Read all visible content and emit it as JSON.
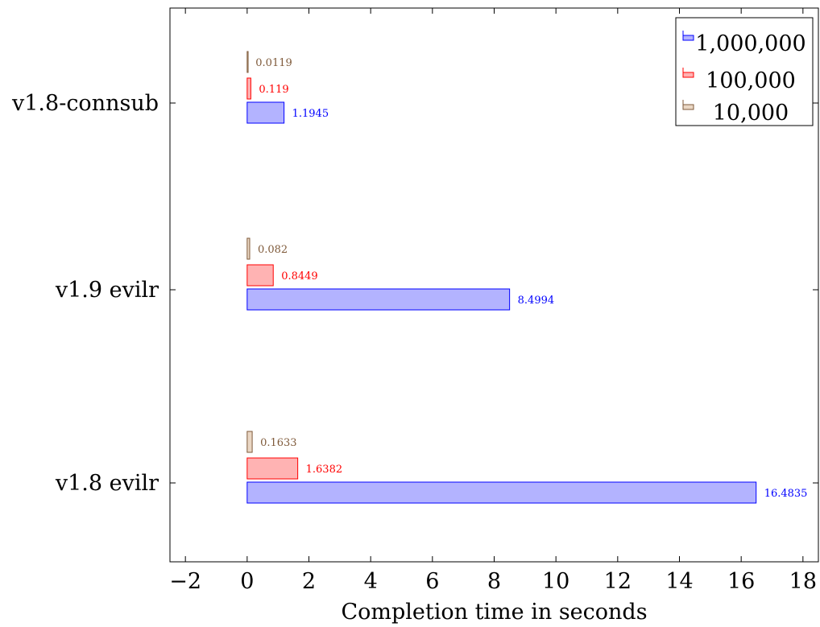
{
  "chart_data": {
    "type": "bar",
    "orientation": "horizontal",
    "categories": [
      "v1.8-connsub",
      "v1.9 evilr",
      "v1.8 evilr"
    ],
    "series": [
      {
        "name": "1,000,000",
        "values": [
          1.1945,
          8.4994,
          16.4835
        ],
        "labels": [
          "1.1945",
          "8.4994",
          "16.4835"
        ],
        "color": "#0000ff",
        "fill": "#b3b3ff"
      },
      {
        "name": "100,000",
        "values": [
          0.119,
          0.8449,
          1.6382
        ],
        "labels": [
          "0.119",
          "0.8449",
          "1.6382"
        ],
        "color": "#ff0000",
        "fill": "#ffb3b3"
      },
      {
        "name": "10,000",
        "values": [
          0.0119,
          0.082,
          0.1633
        ],
        "labels": [
          "0.0119",
          "0.082",
          "0.1633"
        ],
        "color": "#7f5a3a",
        "fill": "#ead7c4"
      }
    ],
    "xlabel": "Completion time in seconds",
    "ylabel": "",
    "title": "",
    "xlim": [
      -2.5,
      18.5
    ],
    "xticks": [
      -2,
      0,
      2,
      4,
      6,
      8,
      10,
      12,
      14,
      16,
      18
    ],
    "xtick_labels": [
      "−2",
      "0",
      "2",
      "4",
      "6",
      "8",
      "10",
      "12",
      "14",
      "16",
      "18"
    ],
    "grid": false,
    "legend_position": "top-right"
  }
}
